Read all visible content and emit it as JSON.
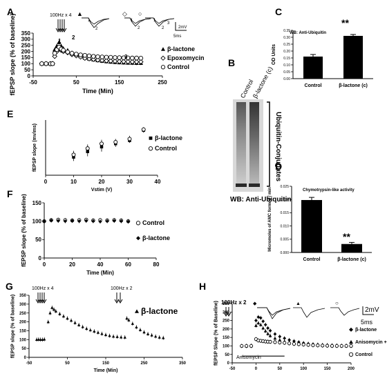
{
  "figure": {
    "panel_letters": {
      "A": "A",
      "B": "B",
      "C": "C",
      "D": "D",
      "E": "E",
      "F": "F",
      "G": "G",
      "H": "H"
    },
    "a": {
      "stim": "100Hz x 4",
      "trace_labels": [
        "1",
        "2",
        "1",
        "2",
        "1",
        "2",
        "3"
      ],
      "scale_v": "2mV",
      "scale_t": "5ms",
      "num_labels": [
        "1",
        "2",
        "3"
      ]
    },
    "b": {
      "lanes": [
        "Control",
        "β-lactone (c)"
      ],
      "bracket_label": "Ubiquitin-Conjugates",
      "caption": "WB: Anti-Ubiquitin"
    },
    "c": {
      "inset": "WB: Anti-Ubiquitin",
      "sig": "**"
    },
    "d": {
      "inset": "Chymotrypsin-like activity",
      "sig": "**"
    },
    "g": {
      "stims": [
        "100Hz x 4",
        "100Hz x 2"
      ]
    },
    "h": {
      "stim": "100Hz x 2",
      "scale_v": "2mV",
      "scale_t": "5ms",
      "bar_label": "Anisomycin"
    }
  },
  "chart_data": [
    {
      "panel": "A",
      "type": "scatter",
      "xlabel": "Time (Min)",
      "ylabel": "fEPSP slope (% of baseline)",
      "xlim": [
        -50,
        250
      ],
      "ylim": [
        0,
        350
      ],
      "xticks": [
        -50,
        50,
        150,
        250
      ],
      "yticks": [
        0,
        50,
        100,
        150,
        200,
        250,
        300,
        350
      ],
      "legend_position": "right",
      "series": [
        {
          "name": "β-lactone",
          "marker": "triangle",
          "x": [
            -30,
            -20,
            -10,
            -5,
            0,
            5,
            10,
            15,
            20,
            30,
            40,
            50,
            60,
            70,
            80,
            90,
            100,
            110,
            120,
            130,
            140,
            150,
            160,
            170,
            180,
            190,
            200
          ],
          "y": [
            100,
            100,
            101,
            100,
            215,
            245,
            275,
            245,
            225,
            210,
            190,
            175,
            160,
            148,
            140,
            133,
            127,
            122,
            118,
            115,
            112,
            110,
            108,
            107,
            106,
            105,
            105
          ]
        },
        {
          "name": "Epoxomycin",
          "marker": "diamond",
          "x": [
            -30,
            -20,
            -10,
            -5,
            0,
            5,
            10,
            15,
            20,
            30,
            40,
            50,
            60,
            70,
            80,
            90,
            100,
            110,
            120,
            130,
            140,
            150,
            160,
            170,
            180,
            190,
            200
          ],
          "y": [
            100,
            100,
            100,
            101,
            160,
            200,
            225,
            210,
            200,
            190,
            175,
            165,
            155,
            145,
            140,
            135,
            130,
            127,
            124,
            122,
            120,
            118,
            117,
            116,
            115,
            115,
            115
          ]
        },
        {
          "name": "Control",
          "marker": "circle",
          "x": [
            -30,
            -20,
            -10,
            -5,
            0,
            5,
            10,
            15,
            20,
            30,
            40,
            50,
            60,
            70,
            80,
            90,
            100,
            110,
            120,
            130,
            140,
            150,
            160,
            170,
            180,
            190,
            200
          ],
          "y": [
            100,
            100,
            99,
            100,
            185,
            215,
            235,
            220,
            210,
            195,
            185,
            178,
            172,
            168,
            164,
            160,
            157,
            155,
            153,
            152,
            150,
            149,
            148,
            147,
            146,
            146,
            145
          ]
        }
      ]
    },
    {
      "panel": "C",
      "type": "bar",
      "ylabel": "OD Units",
      "ylim": [
        0,
        0.35
      ],
      "yticks": [
        0,
        0.05,
        0.1,
        0.15,
        0.2,
        0.25,
        0.3,
        0.35
      ],
      "categories": [
        "Control",
        "β-lactone (c)"
      ],
      "values": [
        0.16,
        0.31
      ],
      "errors": [
        0.015,
        0.01
      ]
    },
    {
      "panel": "D",
      "type": "bar",
      "ylabel": "Micromoles of AMC formed / min",
      "ylim": [
        0,
        0.025
      ],
      "yticks": [
        0,
        0.005,
        0.01,
        0.015,
        0.02,
        0.025
      ],
      "categories": [
        "Control",
        "β-lactone (c)"
      ],
      "values": [
        0.0198,
        0.0032
      ],
      "errors": [
        0.001,
        0.0006
      ]
    },
    {
      "panel": "E",
      "type": "scatter",
      "xlabel": "Vstim (V)",
      "ylabel": "fEPSP slope (mv/ms)",
      "xlim": [
        0,
        40
      ],
      "ylim": [
        0,
        7
      ],
      "xticks": [
        0,
        10,
        20,
        30,
        40
      ],
      "legend_position": "right",
      "series": [
        {
          "name": "β-lactone",
          "marker": "square",
          "x": [
            10,
            15,
            20,
            25,
            30,
            35
          ],
          "y": [
            2.3,
            3.0,
            3.6,
            4.0,
            4.4,
            5.7
          ],
          "err": [
            0.5,
            0.6,
            0.6,
            0.4,
            0.3,
            0.3
          ]
        },
        {
          "name": "Control",
          "marker": "circle",
          "x": [
            10,
            15,
            20,
            25,
            30,
            35
          ],
          "y": [
            2.6,
            3.4,
            4.0,
            4.2,
            4.6,
            5.8
          ],
          "err": [
            0.5,
            0.5,
            0.5,
            0.4,
            0.4,
            0.3
          ]
        }
      ]
    },
    {
      "panel": "F",
      "type": "scatter",
      "xlabel": "Time (Min)",
      "ylabel": "fEPSP slope (% of baseline)",
      "xlim": [
        0,
        80
      ],
      "ylim": [
        0,
        150
      ],
      "xticks": [
        0,
        20,
        40,
        60,
        80
      ],
      "yticks": [
        0,
        50,
        100,
        150
      ],
      "legend_position": "right",
      "series": [
        {
          "name": "Control",
          "marker": "circle",
          "x": [
            0,
            5,
            10,
            15,
            20,
            25,
            30,
            35,
            40,
            45,
            50,
            55,
            60
          ],
          "y": [
            100,
            103,
            104,
            103,
            102,
            103,
            104,
            102,
            103,
            102,
            103,
            102,
            100
          ]
        },
        {
          "name": "β-lactone",
          "marker": "diamond",
          "x": [
            0,
            5,
            10,
            15,
            20,
            25,
            30,
            35,
            40,
            45,
            50,
            55,
            60
          ],
          "y": [
            100,
            102,
            101,
            100,
            101,
            100,
            101,
            100,
            99,
            100,
            101,
            100,
            99
          ]
        }
      ]
    },
    {
      "panel": "G",
      "type": "scatter",
      "xlabel": "Time (Min)",
      "ylabel": "fEPSP slope (% of baseline)",
      "xlim": [
        -50,
        350
      ],
      "ylim": [
        0,
        350
      ],
      "xticks": [
        -50,
        50,
        150,
        250,
        350
      ],
      "yticks": [
        0,
        50,
        100,
        150,
        200,
        250,
        300,
        350
      ],
      "series": [
        {
          "name": "β-lactone",
          "marker": "triangle",
          "x": [
            -30,
            -25,
            -20,
            -15,
            -10,
            0,
            5,
            10,
            15,
            20,
            30,
            40,
            50,
            60,
            70,
            80,
            90,
            100,
            110,
            120,
            130,
            140,
            150,
            160,
            170,
            180,
            190,
            200,
            205,
            210,
            220,
            230,
            240,
            250,
            260,
            270,
            280,
            290,
            300
          ],
          "y": [
            100,
            101,
            100,
            100,
            102,
            200,
            250,
            280,
            270,
            260,
            245,
            232,
            220,
            208,
            195,
            183,
            172,
            162,
            154,
            147,
            140,
            133,
            127,
            122,
            118,
            116,
            114,
            113,
            220,
            210,
            190,
            170,
            155,
            142,
            132,
            125,
            118,
            113,
            110
          ]
        }
      ]
    },
    {
      "panel": "H",
      "type": "scatter",
      "xlabel": "",
      "ylabel": "fEPSP Slope (% of Baseline)",
      "xlim": [
        -50,
        200
      ],
      "ylim": [
        0,
        350
      ],
      "xticks": [
        -50,
        0,
        50,
        100,
        150,
        200
      ],
      "yticks": [
        0,
        50,
        100,
        150,
        200,
        250,
        300,
        350
      ],
      "legend_position": "right",
      "series": [
        {
          "name": "β-lactone",
          "marker": "diamond",
          "x": [
            -30,
            -20,
            -10,
            0,
            5,
            10,
            15,
            20,
            25,
            30,
            40,
            50,
            60,
            70,
            80,
            90,
            100,
            110,
            120,
            130,
            140,
            150,
            160,
            170,
            180,
            190,
            200
          ],
          "y": [
            100,
            100,
            101,
            250,
            270,
            265,
            245,
            225,
            205,
            190,
            170,
            155,
            145,
            135,
            128,
            122,
            117,
            113,
            110,
            108,
            106,
            105,
            104,
            103,
            102,
            102,
            101
          ]
        },
        {
          "name": "Anisomycin +β-lactone",
          "marker": "triangle",
          "x": [
            -30,
            -20,
            -10,
            0,
            5,
            10,
            15,
            20,
            25,
            30,
            40,
            50,
            60,
            70,
            80,
            90,
            100,
            110,
            120,
            130,
            140,
            150,
            160,
            170,
            180,
            190,
            200
          ],
          "y": [
            100,
            99,
            100,
            220,
            235,
            225,
            205,
            188,
            172,
            160,
            145,
            135,
            127,
            121,
            116,
            112,
            109,
            107,
            105,
            104,
            103,
            102,
            101,
            101,
            100,
            100,
            100
          ]
        },
        {
          "name": "Control",
          "marker": "circle",
          "x": [
            -30,
            -20,
            -10,
            0,
            5,
            10,
            15,
            20,
            25,
            30,
            40,
            50,
            60,
            70,
            80,
            90,
            100,
            110,
            120,
            130,
            140,
            150,
            160,
            170,
            180,
            190,
            200
          ],
          "y": [
            100,
            100,
            100,
            140,
            132,
            130,
            128,
            126,
            125,
            124,
            122,
            120,
            118,
            115,
            112,
            110,
            108,
            106,
            104,
            103,
            102,
            101,
            100,
            100,
            100,
            100,
            100
          ]
        }
      ]
    }
  ]
}
